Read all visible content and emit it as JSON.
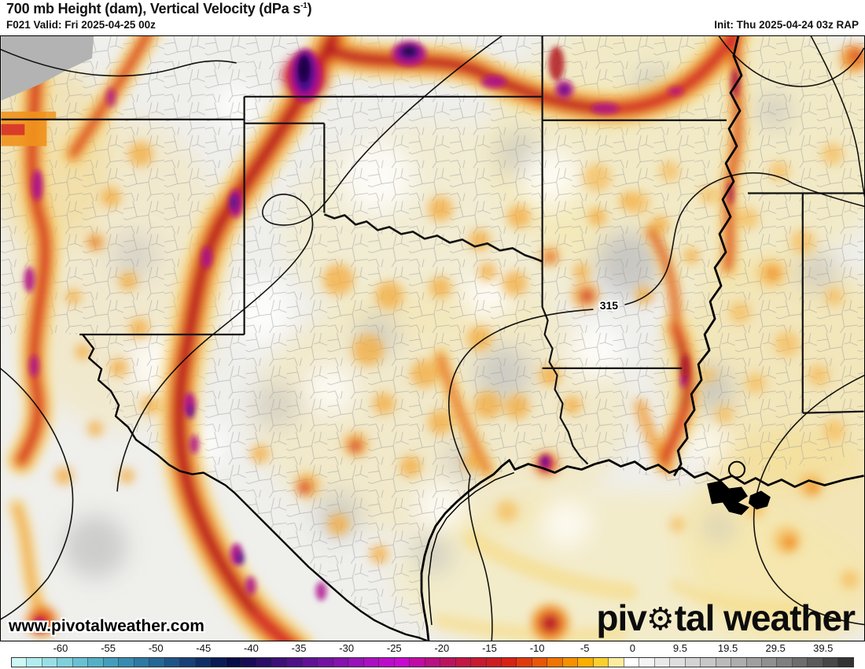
{
  "header": {
    "title_pre": "700 mb Height (dam), Vertical Velocity (dPa s",
    "title_sup": "-1",
    "title_post": ")",
    "forecast": "F021 Valid: Fri 2025-04-25 00z",
    "init": "Init: Thu 2025-04-24 03z RAP"
  },
  "map": {
    "contour_label": "315",
    "watermark": "www.pivotalweather.com",
    "logo": {
      "part1": "piv",
      "gear": "⚙",
      "part2": "tal weather"
    }
  },
  "colorbar": {
    "ticks": [
      {
        "label": "-60",
        "pos": 7.0
      },
      {
        "label": "-55",
        "pos": 12.51
      },
      {
        "label": "-50",
        "pos": 18.02
      },
      {
        "label": "-45",
        "pos": 23.53
      },
      {
        "label": "-40",
        "pos": 29.04
      },
      {
        "label": "-35",
        "pos": 34.55
      },
      {
        "label": "-30",
        "pos": 40.06
      },
      {
        "label": "-25",
        "pos": 45.57
      },
      {
        "label": "-20",
        "pos": 51.08
      },
      {
        "label": "-15",
        "pos": 56.59
      },
      {
        "label": "-10",
        "pos": 62.1
      },
      {
        "label": "-5",
        "pos": 67.61
      },
      {
        "label": "0",
        "pos": 73.12
      },
      {
        "label": "9.5",
        "pos": 78.63
      },
      {
        "label": "19.5",
        "pos": 84.14
      },
      {
        "label": "29.5",
        "pos": 89.65
      },
      {
        "label": "39.5",
        "pos": 95.16
      }
    ],
    "colors": [
      "#cdf8f6",
      "#b2ecee",
      "#98dfe5",
      "#7fd0db",
      "#69c0d2",
      "#55afc7",
      "#459dbc",
      "#388bb0",
      "#2d79a3",
      "#256795",
      "#1e5487",
      "#174177",
      "#102e66",
      "#0a1b55",
      "#090c47",
      "#190b56",
      "#2b0e67",
      "#3d1077",
      "#4f1186",
      "#611294",
      "#7313a1",
      "#8513ad",
      "#9712b8",
      "#a910c1",
      "#bb0dc9",
      "#c80ace",
      "#c00da4",
      "#b81181",
      "#bb145f",
      "#c01745",
      "#c61a30",
      "#cd1d20",
      "#d62113",
      "#df3a0d",
      "#e85607",
      "#f07303",
      "#f69000",
      "#f9ae00",
      "#fbcf30",
      "#fdeca0",
      "#ffffff",
      "#f4f4f4",
      "#e9e9e9",
      "#dedede",
      "#d3d3d3",
      "#c7c7c7",
      "#bababa",
      "#adadad",
      "#9f9f9f",
      "#909090",
      "#7f7f7f",
      "#6d6d6d",
      "#5a5a5a",
      "#474747",
      "#333333"
    ]
  }
}
